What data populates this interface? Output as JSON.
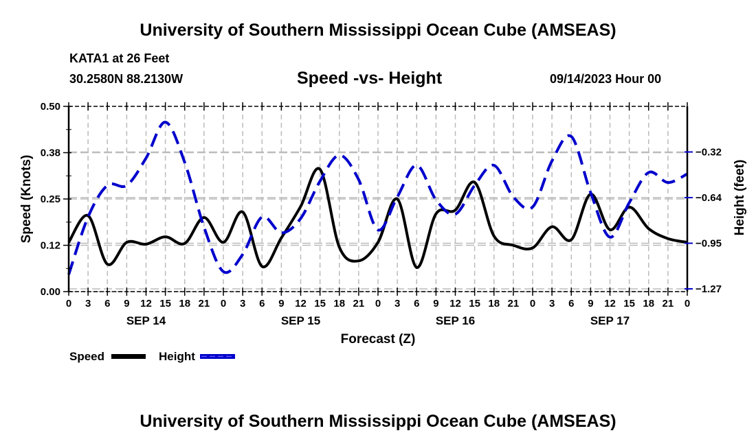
{
  "header": {
    "title": "University of Southern Mississippi Ocean Cube (AMSEAS)",
    "station": "KATA1 at 26 Feet",
    "coords": "30.2580N  88.2130W",
    "subtitle": "Speed -vs- Height",
    "datetime": "09/14/2023 Hour 00"
  },
  "footer": {
    "title": "University of Southern Mississippi Ocean Cube (AMSEAS)"
  },
  "colors": {
    "speed": "#000000",
    "height": "#0000cc",
    "grid": "#bbbbbb"
  },
  "chart_data": {
    "type": "line",
    "title": "Speed -vs- Height",
    "xlabel": "Forecast (Z)",
    "ylabel": "Speed (Knots)",
    "y2label": "Height (feet)",
    "xlim_hours": [
      0,
      96
    ],
    "ylim": [
      0.0,
      0.5
    ],
    "y2lim": [
      -1.27,
      0.0
    ],
    "yticks": [
      "0.00",
      "0.12",
      "0.25",
      "0.38",
      "0.50"
    ],
    "ytick_values": [
      0.0,
      0.125,
      0.25,
      0.375,
      0.5
    ],
    "y2ticks": [
      "-1.27",
      "-0.95",
      "-0.64",
      "-0.32"
    ],
    "y2tick_values": [
      -1.27,
      -0.9525,
      -0.635,
      -0.3175
    ],
    "xtick_labels": [
      "0",
      "3",
      "6",
      "9",
      "12",
      "15",
      "18",
      "21",
      "0",
      "3",
      "6",
      "9",
      "12",
      "15",
      "18",
      "21",
      "0",
      "3",
      "6",
      "9",
      "12",
      "15",
      "18",
      "21",
      "0",
      "3",
      "6",
      "9",
      "12",
      "15",
      "18",
      "21",
      "0"
    ],
    "date_labels": [
      {
        "label": "SEP 14",
        "hour": 12
      },
      {
        "label": "SEP 15",
        "hour": 36
      },
      {
        "label": "SEP 16",
        "hour": 60
      },
      {
        "label": "SEP 17",
        "hour": 84
      }
    ],
    "grid": true,
    "legend": "bottom-left",
    "x_hours": [
      0,
      3,
      6,
      9,
      12,
      15,
      18,
      21,
      24,
      27,
      30,
      33,
      36,
      39,
      42,
      45,
      48,
      51,
      54,
      57,
      60,
      63,
      66,
      69,
      72,
      75,
      78,
      81,
      84,
      87,
      90,
      93,
      96
    ],
    "series": [
      {
        "name": "Speed",
        "axis": "left",
        "style": "solid",
        "values": [
          0.133,
          0.205,
          0.074,
          0.133,
          0.128,
          0.148,
          0.13,
          0.2,
          0.133,
          0.215,
          0.068,
          0.145,
          0.23,
          0.33,
          0.12,
          0.083,
          0.133,
          0.25,
          0.065,
          0.21,
          0.22,
          0.295,
          0.15,
          0.125,
          0.118,
          0.175,
          0.14,
          0.263,
          0.167,
          0.228,
          0.17,
          0.143,
          0.133
        ]
      },
      {
        "name": "Height",
        "axis": "right",
        "style": "dashed",
        "values": [
          -1.17,
          -0.77,
          -0.55,
          -0.55,
          -0.36,
          -0.11,
          -0.39,
          -0.84,
          -1.15,
          -1.03,
          -0.77,
          -0.88,
          -0.78,
          -0.52,
          -0.34,
          -0.51,
          -0.86,
          -0.63,
          -0.41,
          -0.65,
          -0.75,
          -0.55,
          -0.41,
          -0.63,
          -0.7,
          -0.38,
          -0.21,
          -0.6,
          -0.91,
          -0.67,
          -0.46,
          -0.53,
          -0.47
        ]
      }
    ]
  }
}
